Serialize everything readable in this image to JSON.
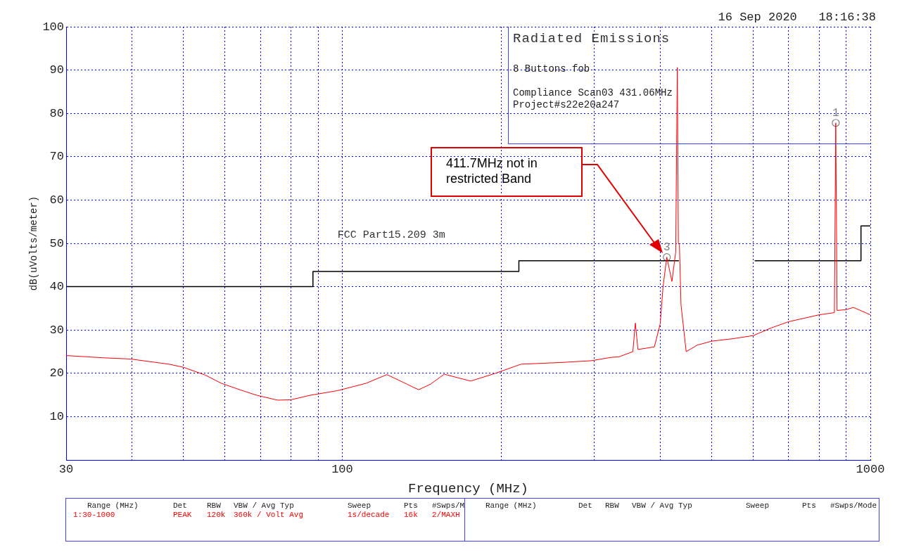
{
  "chart_data": {
    "type": "line",
    "title": "Radiated Emissions",
    "subtitle": "8 Buttons fob\nCompliance Scan03 431.06MHz\nProject#s22e20a247",
    "xlabel": "Frequency (MHz)",
    "ylabel": "dB(uVolts/meter)",
    "log": "x",
    "xlim": [
      30,
      1000
    ],
    "ylim": [
      0,
      100
    ],
    "xticks": [
      30,
      {
        "value": 40,
        "label": null
      },
      {
        "value": 50,
        "label": null
      },
      {
        "value": 60,
        "label": null
      },
      {
        "value": 70,
        "label": null
      },
      {
        "value": 80,
        "label": null
      },
      {
        "value": 90,
        "label": null
      },
      100,
      {
        "value": 200,
        "label": null
      },
      {
        "value": 300,
        "label": null
      },
      {
        "value": 400,
        "label": null
      },
      {
        "value": 500,
        "label": null
      },
      {
        "value": 600,
        "label": null
      },
      {
        "value": 700,
        "label": null
      },
      {
        "value": 800,
        "label": null
      },
      {
        "value": 900,
        "label": null
      },
      1000
    ],
    "yticks": [
      {
        "value": 0,
        "label": null
      },
      10,
      20,
      30,
      40,
      50,
      60,
      70,
      80,
      90,
      100
    ],
    "grid": true,
    "legend": false,
    "series": [
      {
        "color": "#ff0000",
        "x": [
          30,
          35,
          39.7,
          47,
          50,
          55,
          59,
          64,
          69,
          75.5,
          80,
          86.7,
          98,
          111,
          121.5,
          130,
          139.5,
          147,
          156,
          175,
          195,
          218,
          260,
          296,
          324,
          334,
          355,
          359,
          363,
          390,
          400,
          405,
          411.7,
          421,
          428,
          431,
          433,
          435,
          438,
          448,
          470,
          500,
          550,
          600,
          650,
          700,
          800,
          855,
          860,
          865,
          900,
          929,
          1000
        ],
        "values": [
          24.1,
          23.6,
          23.3,
          22.1,
          21.4,
          19.6,
          17.7,
          16.2,
          14.9,
          13.8,
          13.9,
          14.9,
          16,
          17.7,
          19.7,
          18,
          16.2,
          17.5,
          19.8,
          18.2,
          20,
          22.1,
          22.5,
          22.9,
          23.7,
          23.8,
          25,
          31.6,
          25.5,
          26.1,
          31.4,
          40,
          46.8,
          41.2,
          48,
          90.6,
          50,
          49.6,
          35.8,
          25,
          26.5,
          27.4,
          28,
          28.7,
          30.5,
          31.9,
          33.5,
          34,
          77.8,
          34.5,
          34.7,
          35.2,
          33.5
        ]
      },
      {
        "name": "FCC Part15.209 3m",
        "color": "#000000",
        "x": [
          30,
          88,
          88,
          216,
          216,
          434,
          500,
          604,
          960,
          960,
          1000
        ],
        "values": [
          40,
          40,
          43.5,
          43.5,
          46,
          46,
          null,
          46,
          46,
          54,
          54
        ]
      },
      {
        "type": "scatter",
        "marker": "circle",
        "color": "#808080",
        "x": [
          411.7,
          860
        ],
        "values": [
          46.8,
          77.8
        ]
      }
    ],
    "annotations": [
      "16 Sep 2020   18:16:38",
      "411.7MHz not in restricted Band",
      {
        "text": "3",
        "x": 411.7,
        "y": 46.8
      },
      {
        "text": "1",
        "x": 860,
        "y": 77.8
      },
      "Range (MHz)",
      "Det",
      "RBW",
      "VBW / Avg Typ",
      "Sweep",
      "Pts",
      "#Swps/M",
      "1:30-1000",
      "PEAK",
      "120k",
      "360k / Volt Avg",
      "1s/decade",
      "16k",
      "2/MAXH",
      "Range (MHz)",
      "Det",
      "RBW",
      "VBW / Avg Typ",
      "Sweep",
      "Pts",
      "#Swps/Mode"
    ]
  }
}
